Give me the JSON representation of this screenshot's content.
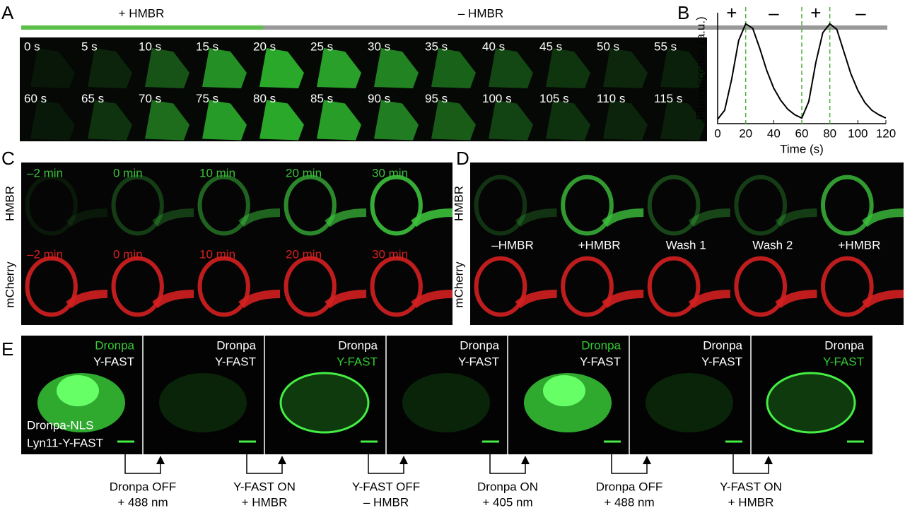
{
  "panel_a": {
    "letter": "A",
    "plus_label": "+ HMBR",
    "minus_label": "– HMBR",
    "times": [
      [
        "0 s",
        "5 s",
        "10 s",
        "15 s",
        "20 s",
        "25 s",
        "30 s",
        "35 s",
        "40 s",
        "45 s",
        "50 s",
        "55 s"
      ],
      [
        "60 s",
        "65 s",
        "70 s",
        "75 s",
        "80 s",
        "85 s",
        "90 s",
        "95 s",
        "100 s",
        "105 s",
        "110 s",
        "115 s"
      ]
    ]
  },
  "panel_b": {
    "letter": "B",
    "type": "line",
    "xlabel": "Time (s)",
    "ylabel": "Fluorescence (a.u.)",
    "x": [
      0,
      5,
      10,
      15,
      20,
      25,
      30,
      35,
      40,
      45,
      50,
      55,
      60,
      65,
      70,
      75,
      80,
      85,
      90,
      95,
      100,
      105,
      110,
      115,
      120
    ],
    "values": [
      0.04,
      0.12,
      0.4,
      0.75,
      0.9,
      0.86,
      0.68,
      0.48,
      0.32,
      0.21,
      0.13,
      0.08,
      0.05,
      0.2,
      0.55,
      0.82,
      0.9,
      0.85,
      0.65,
      0.45,
      0.3,
      0.19,
      0.12,
      0.08,
      0.05
    ],
    "color": "#000000",
    "xlim": [
      0,
      120
    ],
    "xticks": [
      0,
      20,
      40,
      60,
      80,
      100,
      120
    ],
    "ylim": [
      0,
      1
    ],
    "dashed_lines": [
      20,
      60,
      80
    ],
    "dashed_color": "#4caf3c",
    "phase_labels": [
      "+",
      "–",
      "+",
      "–"
    ],
    "phase_x": [
      10,
      40,
      70,
      102
    ]
  },
  "panel_c": {
    "letter": "C",
    "rows": [
      "HMBR",
      "mCherry"
    ],
    "times": [
      "–2 min",
      "0 min",
      "10 min",
      "20 min",
      "30 min"
    ]
  },
  "panel_d": {
    "letter": "D",
    "rows": [
      "HMBR",
      "mCherry"
    ],
    "conditions": [
      "–HMBR",
      "+HMBR",
      "Wash 1",
      "Wash 2",
      "+HMBR"
    ]
  },
  "panel_e": {
    "letter": "E",
    "label_top": "Dronpa",
    "label_bottom": "Y-FAST",
    "highlight": [
      "Dronpa",
      null,
      "Y-FAST",
      null,
      "Dronpa",
      null,
      "Y-FAST"
    ],
    "construct_labels": [
      "Dronpa-NLS",
      "Lyn11-Y-FAST"
    ],
    "steps": [
      [
        "Dronpa OFF",
        "+ 488 nm"
      ],
      [
        "Y-FAST ON",
        "+ HMBR"
      ],
      [
        "Y-FAST OFF",
        "– HMBR"
      ],
      [
        "Dronpa ON",
        "+ 405 nm"
      ],
      [
        "Dronpa OFF",
        "+ 488 nm"
      ],
      [
        "Y-FAST ON",
        "+ HMBR"
      ]
    ]
  }
}
